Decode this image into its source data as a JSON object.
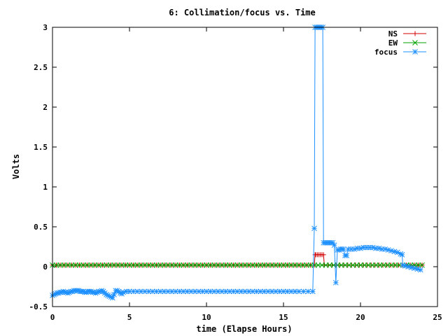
{
  "chart_data": {
    "type": "line",
    "title": "6: Collimation/focus vs. Time",
    "xlabel": "time (Elapse Hours)",
    "ylabel": "Volts",
    "xlim": [
      0,
      25
    ],
    "ylim": [
      -0.5,
      3
    ],
    "x_ticks": [
      "0",
      "5",
      "10",
      "15",
      "20",
      "25"
    ],
    "y_ticks": [
      "-0.5",
      "0",
      "0.5",
      "1",
      "1.5",
      "2",
      "2.5",
      "3"
    ],
    "grid": false,
    "legend_position": "top-right",
    "series": [
      {
        "name": "NS",
        "color": "#d00000",
        "marker": "plus",
        "points": [
          [
            0,
            0.02
          ],
          [
            17.0,
            0.02
          ],
          [
            17.05,
            0.15
          ],
          [
            17.1,
            0.15
          ],
          [
            17.2,
            0.15
          ],
          [
            17.3,
            0.15
          ],
          [
            17.4,
            0.15
          ],
          [
            17.5,
            0.15
          ],
          [
            17.6,
            0.15
          ],
          [
            17.65,
            0.02
          ],
          [
            24.0,
            0.02
          ]
        ]
      },
      {
        "name": "EW",
        "color": "#00a000",
        "marker": "cross",
        "points": [
          [
            0,
            0.02
          ],
          [
            24.0,
            0.02
          ]
        ]
      },
      {
        "name": "focus",
        "color": "#1e90ff",
        "marker": "star",
        "points": [
          [
            0.0,
            -0.36
          ],
          [
            0.1,
            -0.35
          ],
          [
            0.2,
            -0.34
          ],
          [
            0.3,
            -0.33
          ],
          [
            0.4,
            -0.33
          ],
          [
            0.5,
            -0.32
          ],
          [
            0.6,
            -0.32
          ],
          [
            0.7,
            -0.31
          ],
          [
            0.8,
            -0.32
          ],
          [
            0.9,
            -0.32
          ],
          [
            1.0,
            -0.33
          ],
          [
            1.1,
            -0.32
          ],
          [
            1.2,
            -0.31
          ],
          [
            1.3,
            -0.31
          ],
          [
            1.4,
            -0.3
          ],
          [
            1.5,
            -0.3
          ],
          [
            1.6,
            -0.3
          ],
          [
            1.7,
            -0.3
          ],
          [
            1.8,
            -0.31
          ],
          [
            1.9,
            -0.31
          ],
          [
            2.0,
            -0.31
          ],
          [
            2.1,
            -0.32
          ],
          [
            2.2,
            -0.32
          ],
          [
            2.3,
            -0.31
          ],
          [
            2.4,
            -0.31
          ],
          [
            2.5,
            -0.31
          ],
          [
            2.6,
            -0.32
          ],
          [
            2.7,
            -0.32
          ],
          [
            2.8,
            -0.33
          ],
          [
            2.9,
            -0.32
          ],
          [
            3.0,
            -0.31
          ],
          [
            3.1,
            -0.31
          ],
          [
            3.2,
            -0.3
          ],
          [
            3.3,
            -0.31
          ],
          [
            3.4,
            -0.33
          ],
          [
            3.5,
            -0.35
          ],
          [
            3.6,
            -0.36
          ],
          [
            3.7,
            -0.37
          ],
          [
            3.8,
            -0.38
          ],
          [
            3.9,
            -0.39
          ],
          [
            4.0,
            -0.35
          ],
          [
            4.1,
            -0.3
          ],
          [
            4.2,
            -0.3
          ],
          [
            4.3,
            -0.31
          ],
          [
            4.4,
            -0.33
          ],
          [
            4.5,
            -0.34
          ],
          [
            4.6,
            -0.32
          ],
          [
            4.8,
            -0.31
          ],
          [
            5.0,
            -0.31
          ],
          [
            6.0,
            -0.31
          ],
          [
            7.0,
            -0.31
          ],
          [
            8.0,
            -0.31
          ],
          [
            9.0,
            -0.31
          ],
          [
            10.0,
            -0.31
          ],
          [
            11.0,
            -0.31
          ],
          [
            12.0,
            -0.31
          ],
          [
            13.0,
            -0.31
          ],
          [
            14.0,
            -0.31
          ],
          [
            15.0,
            -0.31
          ],
          [
            16.0,
            -0.31
          ],
          [
            16.9,
            -0.31
          ],
          [
            17.0,
            0.48
          ],
          [
            17.05,
            3.0
          ],
          [
            17.15,
            3.0
          ],
          [
            17.25,
            3.0
          ],
          [
            17.35,
            3.0
          ],
          [
            17.45,
            3.0
          ],
          [
            17.55,
            3.0
          ],
          [
            17.6,
            0.3
          ],
          [
            17.7,
            0.3
          ],
          [
            17.8,
            0.3
          ],
          [
            17.9,
            0.3
          ],
          [
            18.0,
            0.3
          ],
          [
            18.1,
            0.3
          ],
          [
            18.2,
            0.3
          ],
          [
            18.3,
            0.27
          ],
          [
            18.4,
            -0.2
          ],
          [
            18.5,
            0.21
          ],
          [
            18.6,
            0.21
          ],
          [
            18.7,
            0.22
          ],
          [
            18.8,
            0.22
          ],
          [
            18.9,
            0.22
          ],
          [
            19.0,
            0.14
          ],
          [
            19.1,
            0.14
          ],
          [
            19.2,
            0.22
          ],
          [
            19.4,
            0.22
          ],
          [
            19.6,
            0.22
          ],
          [
            19.8,
            0.23
          ],
          [
            20.0,
            0.23
          ],
          [
            20.2,
            0.24
          ],
          [
            20.4,
            0.24
          ],
          [
            20.6,
            0.24
          ],
          [
            20.8,
            0.24
          ],
          [
            21.0,
            0.23
          ],
          [
            21.2,
            0.23
          ],
          [
            21.4,
            0.22
          ],
          [
            21.6,
            0.22
          ],
          [
            21.8,
            0.21
          ],
          [
            22.0,
            0.2
          ],
          [
            22.2,
            0.19
          ],
          [
            22.4,
            0.18
          ],
          [
            22.6,
            0.16
          ],
          [
            22.7,
            0.15
          ],
          [
            22.75,
            0.02
          ],
          [
            22.9,
            0.01
          ],
          [
            23.1,
            0.0
          ],
          [
            23.3,
            -0.01
          ],
          [
            23.5,
            -0.02
          ],
          [
            23.7,
            -0.03
          ],
          [
            23.9,
            -0.04
          ]
        ]
      }
    ]
  }
}
